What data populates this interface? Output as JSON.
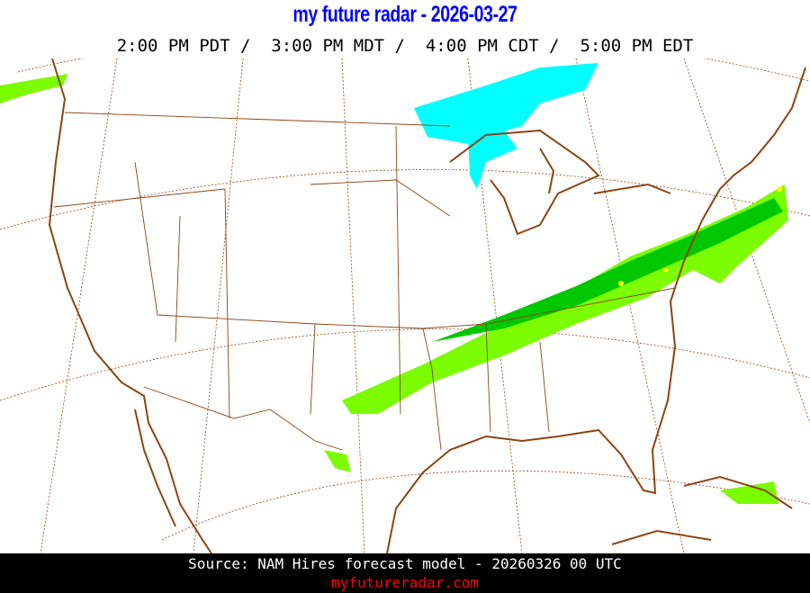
{
  "header": {
    "title": "my future radar - 2026-03-27",
    "times": "2:00 PM PDT /  3:00 PM MDT /  4:00 PM CDT /  5:00 PM EDT"
  },
  "map": {
    "region": "Continental United States",
    "layers": [
      "forecast radar reflectivity",
      "state borders",
      "coastlines",
      "latitude/longitude grid"
    ],
    "colors": {
      "border": "#8b4513",
      "grid": "#8b4513",
      "rain_light": "#7cfc00",
      "rain_moderate": "#00c800",
      "rain_heavy": "#ffff00",
      "snow": "#00ffff",
      "title": "#0000ff",
      "site": "#ff0000"
    }
  },
  "footer": {
    "source": "Source: NAM Hires forecast model - 20260326 00 UTC",
    "site": "myfutureradar.com"
  }
}
